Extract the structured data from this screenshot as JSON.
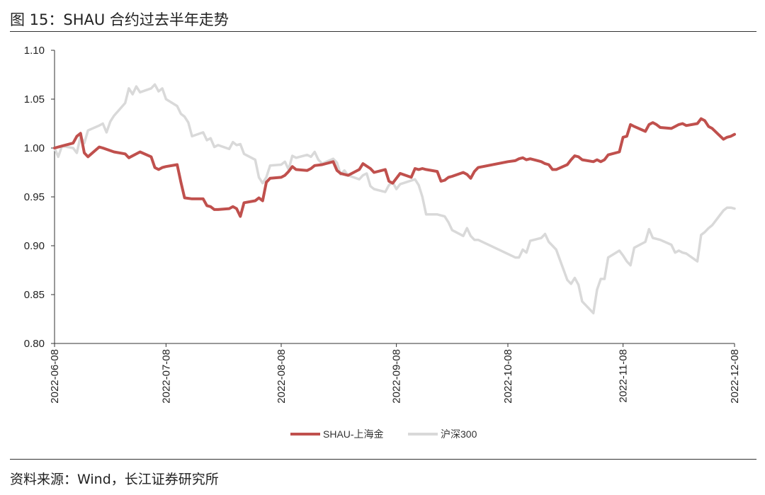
{
  "title": "图 15：SHAU 合约过去半年走势",
  "source": "资料来源：Wind，长江证券研究所",
  "chart_data": {
    "type": "line",
    "title": "",
    "xlabel": "",
    "ylabel": "",
    "ylim": [
      0.8,
      1.1
    ],
    "yticks": [
      "1.10",
      "1.05",
      "1.00",
      "0.95",
      "0.90",
      "0.85",
      "0.80"
    ],
    "xlim": [
      "2022-06-08",
      "2022-12-08"
    ],
    "xticks": [
      "2022-06-08",
      "2022-07-08",
      "2022-08-08",
      "2022-09-08",
      "2022-10-08",
      "2022-11-08",
      "2022-12-08"
    ],
    "grid": false,
    "legend": "bottom-center",
    "series": [
      {
        "name": "SHAU-上海金",
        "color": "#c0504d",
        "points": [
          [
            "2022-06-08",
            1.0
          ],
          [
            "2022-06-10",
            1.002
          ],
          [
            "2022-06-13",
            1.005
          ],
          [
            "2022-06-14",
            1.012
          ],
          [
            "2022-06-15",
            1.015
          ],
          [
            "2022-06-16",
            0.995
          ],
          [
            "2022-06-17",
            0.991
          ],
          [
            "2022-06-20",
            1.001
          ],
          [
            "2022-06-21",
            1.0
          ],
          [
            "2022-06-24",
            0.996
          ],
          [
            "2022-06-27",
            0.994
          ],
          [
            "2022-06-28",
            0.99
          ],
          [
            "2022-07-01",
            0.996
          ],
          [
            "2022-07-04",
            0.991
          ],
          [
            "2022-07-05",
            0.98
          ],
          [
            "2022-07-06",
            0.978
          ],
          [
            "2022-07-07",
            0.98
          ],
          [
            "2022-07-08",
            0.981
          ],
          [
            "2022-07-11",
            0.983
          ],
          [
            "2022-07-12",
            0.965
          ],
          [
            "2022-07-13",
            0.949
          ],
          [
            "2022-07-15",
            0.948
          ],
          [
            "2022-07-18",
            0.948
          ],
          [
            "2022-07-19",
            0.941
          ],
          [
            "2022-07-20",
            0.94
          ],
          [
            "2022-07-21",
            0.937
          ],
          [
            "2022-07-22",
            0.937
          ],
          [
            "2022-07-25",
            0.938
          ],
          [
            "2022-07-26",
            0.94
          ],
          [
            "2022-07-27",
            0.938
          ],
          [
            "2022-07-28",
            0.93
          ],
          [
            "2022-07-29",
            0.944
          ],
          [
            "2022-08-01",
            0.946
          ],
          [
            "2022-08-02",
            0.949
          ],
          [
            "2022-08-03",
            0.946
          ],
          [
            "2022-08-04",
            0.965
          ],
          [
            "2022-08-05",
            0.969
          ],
          [
            "2022-08-08",
            0.97
          ],
          [
            "2022-08-09",
            0.972
          ],
          [
            "2022-08-10",
            0.976
          ],
          [
            "2022-08-11",
            0.981
          ],
          [
            "2022-08-12",
            0.978
          ],
          [
            "2022-08-15",
            0.977
          ],
          [
            "2022-08-16",
            0.979
          ],
          [
            "2022-08-17",
            0.982
          ],
          [
            "2022-08-19",
            0.983
          ],
          [
            "2022-08-22",
            0.986
          ],
          [
            "2022-08-23",
            0.977
          ],
          [
            "2022-08-24",
            0.974
          ],
          [
            "2022-08-26",
            0.972
          ],
          [
            "2022-08-29",
            0.978
          ],
          [
            "2022-08-30",
            0.984
          ],
          [
            "2022-09-01",
            0.979
          ],
          [
            "2022-09-02",
            0.975
          ],
          [
            "2022-09-05",
            0.978
          ],
          [
            "2022-09-06",
            0.966
          ],
          [
            "2022-09-07",
            0.964
          ],
          [
            "2022-09-08",
            0.969
          ],
          [
            "2022-09-09",
            0.974
          ],
          [
            "2022-09-12",
            0.97
          ],
          [
            "2022-09-13",
            0.979
          ],
          [
            "2022-09-14",
            0.978
          ],
          [
            "2022-09-15",
            0.979
          ],
          [
            "2022-09-16",
            0.978
          ],
          [
            "2022-09-19",
            0.976
          ],
          [
            "2022-09-20",
            0.966
          ],
          [
            "2022-09-21",
            0.967
          ],
          [
            "2022-09-22",
            0.97
          ],
          [
            "2022-09-23",
            0.971
          ],
          [
            "2022-09-26",
            0.975
          ],
          [
            "2022-09-27",
            0.973
          ],
          [
            "2022-09-28",
            0.969
          ],
          [
            "2022-09-29",
            0.976
          ],
          [
            "2022-09-30",
            0.98
          ],
          [
            "2022-10-08",
            0.986
          ],
          [
            "2022-10-10",
            0.987
          ],
          [
            "2022-10-11",
            0.989
          ],
          [
            "2022-10-12",
            0.99
          ],
          [
            "2022-10-13",
            0.988
          ],
          [
            "2022-10-14",
            0.989
          ],
          [
            "2022-10-17",
            0.986
          ],
          [
            "2022-10-18",
            0.984
          ],
          [
            "2022-10-19",
            0.983
          ],
          [
            "2022-10-20",
            0.978
          ],
          [
            "2022-10-21",
            0.978
          ],
          [
            "2022-10-24",
            0.983
          ],
          [
            "2022-10-25",
            0.988
          ],
          [
            "2022-10-26",
            0.992
          ],
          [
            "2022-10-27",
            0.991
          ],
          [
            "2022-10-28",
            0.988
          ],
          [
            "2022-10-31",
            0.986
          ],
          [
            "2022-11-01",
            0.988
          ],
          [
            "2022-11-02",
            0.986
          ],
          [
            "2022-11-03",
            0.988
          ],
          [
            "2022-11-04",
            0.993
          ],
          [
            "2022-11-07",
            0.996
          ],
          [
            "2022-11-08",
            1.011
          ],
          [
            "2022-11-09",
            1.012
          ],
          [
            "2022-11-10",
            1.024
          ],
          [
            "2022-11-11",
            1.022
          ],
          [
            "2022-11-14",
            1.017
          ],
          [
            "2022-11-15",
            1.024
          ],
          [
            "2022-11-16",
            1.026
          ],
          [
            "2022-11-17",
            1.024
          ],
          [
            "2022-11-18",
            1.021
          ],
          [
            "2022-11-21",
            1.02
          ],
          [
            "2022-11-22",
            1.022
          ],
          [
            "2022-11-23",
            1.024
          ],
          [
            "2022-11-24",
            1.025
          ],
          [
            "2022-11-25",
            1.023
          ],
          [
            "2022-11-28",
            1.025
          ],
          [
            "2022-11-29",
            1.03
          ],
          [
            "2022-11-30",
            1.028
          ],
          [
            "2022-12-01",
            1.022
          ],
          [
            "2022-12-02",
            1.02
          ],
          [
            "2022-12-05",
            1.009
          ],
          [
            "2022-12-06",
            1.011
          ],
          [
            "2022-12-07",
            1.012
          ],
          [
            "2022-12-08",
            1.014
          ]
        ]
      },
      {
        "name": "沪深300",
        "color": "#d9d9d9",
        "points": [
          [
            "2022-06-08",
            1.0
          ],
          [
            "2022-06-09",
            0.991
          ],
          [
            "2022-06-10",
            1.002
          ],
          [
            "2022-06-13",
            1.0
          ],
          [
            "2022-06-14",
            0.995
          ],
          [
            "2022-06-15",
            1.012
          ],
          [
            "2022-06-16",
            1.005
          ],
          [
            "2022-06-17",
            1.018
          ],
          [
            "2022-06-20",
            1.023
          ],
          [
            "2022-06-21",
            1.025
          ],
          [
            "2022-06-22",
            1.016
          ],
          [
            "2022-06-23",
            1.027
          ],
          [
            "2022-06-24",
            1.033
          ],
          [
            "2022-06-27",
            1.046
          ],
          [
            "2022-06-28",
            1.061
          ],
          [
            "2022-06-29",
            1.055
          ],
          [
            "2022-06-30",
            1.063
          ],
          [
            "2022-07-01",
            1.057
          ],
          [
            "2022-07-04",
            1.061
          ],
          [
            "2022-07-05",
            1.065
          ],
          [
            "2022-07-06",
            1.058
          ],
          [
            "2022-07-07",
            1.061
          ],
          [
            "2022-07-08",
            1.05
          ],
          [
            "2022-07-11",
            1.043
          ],
          [
            "2022-07-12",
            1.035
          ],
          [
            "2022-07-13",
            1.032
          ],
          [
            "2022-07-14",
            1.026
          ],
          [
            "2022-07-15",
            1.012
          ],
          [
            "2022-07-18",
            1.016
          ],
          [
            "2022-07-19",
            1.008
          ],
          [
            "2022-07-20",
            1.01
          ],
          [
            "2022-07-21",
            1.001
          ],
          [
            "2022-07-22",
            1.003
          ],
          [
            "2022-07-25",
            0.999
          ],
          [
            "2022-07-26",
            1.006
          ],
          [
            "2022-07-27",
            1.003
          ],
          [
            "2022-07-28",
            1.004
          ],
          [
            "2022-07-29",
            0.994
          ],
          [
            "2022-08-01",
            0.988
          ],
          [
            "2022-08-02",
            0.97
          ],
          [
            "2022-08-03",
            0.964
          ],
          [
            "2022-08-04",
            0.97
          ],
          [
            "2022-08-05",
            0.982
          ],
          [
            "2022-08-08",
            0.983
          ],
          [
            "2022-08-09",
            0.986
          ],
          [
            "2022-08-10",
            0.978
          ],
          [
            "2022-08-11",
            0.992
          ],
          [
            "2022-08-12",
            0.99
          ],
          [
            "2022-08-15",
            0.993
          ],
          [
            "2022-08-16",
            0.991
          ],
          [
            "2022-08-17",
            0.996
          ],
          [
            "2022-08-18",
            0.988
          ],
          [
            "2022-08-19",
            0.984
          ],
          [
            "2022-08-22",
            0.989
          ],
          [
            "2022-08-23",
            0.985
          ],
          [
            "2022-08-24",
            0.973
          ],
          [
            "2022-08-25",
            0.977
          ],
          [
            "2022-08-26",
            0.972
          ],
          [
            "2022-08-29",
            0.968
          ],
          [
            "2022-08-30",
            0.972
          ],
          [
            "2022-08-31",
            0.974
          ],
          [
            "2022-09-01",
            0.961
          ],
          [
            "2022-09-02",
            0.958
          ],
          [
            "2022-09-05",
            0.955
          ],
          [
            "2022-09-06",
            0.962
          ],
          [
            "2022-09-07",
            0.965
          ],
          [
            "2022-09-08",
            0.958
          ],
          [
            "2022-09-09",
            0.963
          ],
          [
            "2022-09-13",
            0.968
          ],
          [
            "2022-09-14",
            0.962
          ],
          [
            "2022-09-15",
            0.95
          ],
          [
            "2022-09-16",
            0.932
          ],
          [
            "2022-09-19",
            0.932
          ],
          [
            "2022-09-20",
            0.931
          ],
          [
            "2022-09-21",
            0.93
          ],
          [
            "2022-09-22",
            0.924
          ],
          [
            "2022-09-23",
            0.916
          ],
          [
            "2022-09-26",
            0.91
          ],
          [
            "2022-09-27",
            0.918
          ],
          [
            "2022-09-28",
            0.91
          ],
          [
            "2022-09-29",
            0.906
          ],
          [
            "2022-09-30",
            0.906
          ],
          [
            "2022-10-10",
            0.888
          ],
          [
            "2022-10-11",
            0.888
          ],
          [
            "2022-10-12",
            0.896
          ],
          [
            "2022-10-13",
            0.893
          ],
          [
            "2022-10-14",
            0.905
          ],
          [
            "2022-10-17",
            0.908
          ],
          [
            "2022-10-18",
            0.912
          ],
          [
            "2022-10-19",
            0.904
          ],
          [
            "2022-10-20",
            0.9
          ],
          [
            "2022-10-21",
            0.896
          ],
          [
            "2022-10-24",
            0.865
          ],
          [
            "2022-10-25",
            0.861
          ],
          [
            "2022-10-26",
            0.867
          ],
          [
            "2022-10-27",
            0.86
          ],
          [
            "2022-10-28",
            0.843
          ],
          [
            "2022-10-31",
            0.831
          ],
          [
            "2022-11-01",
            0.855
          ],
          [
            "2022-11-02",
            0.866
          ],
          [
            "2022-11-03",
            0.866
          ],
          [
            "2022-11-04",
            0.888
          ],
          [
            "2022-11-07",
            0.895
          ],
          [
            "2022-11-08",
            0.89
          ],
          [
            "2022-11-09",
            0.884
          ],
          [
            "2022-11-10",
            0.88
          ],
          [
            "2022-11-11",
            0.898
          ],
          [
            "2022-11-14",
            0.904
          ],
          [
            "2022-11-15",
            0.917
          ],
          [
            "2022-11-16",
            0.908
          ],
          [
            "2022-11-17",
            0.907
          ],
          [
            "2022-11-18",
            0.906
          ],
          [
            "2022-11-21",
            0.901
          ],
          [
            "2022-11-22",
            0.893
          ],
          [
            "2022-11-23",
            0.895
          ],
          [
            "2022-11-24",
            0.893
          ],
          [
            "2022-11-25",
            0.892
          ],
          [
            "2022-11-28",
            0.884
          ],
          [
            "2022-11-29",
            0.911
          ],
          [
            "2022-11-30",
            0.914
          ],
          [
            "2022-12-01",
            0.918
          ],
          [
            "2022-12-02",
            0.921
          ],
          [
            "2022-12-05",
            0.936
          ],
          [
            "2022-12-06",
            0.939
          ],
          [
            "2022-12-07",
            0.939
          ],
          [
            "2022-12-08",
            0.938
          ]
        ]
      }
    ]
  }
}
